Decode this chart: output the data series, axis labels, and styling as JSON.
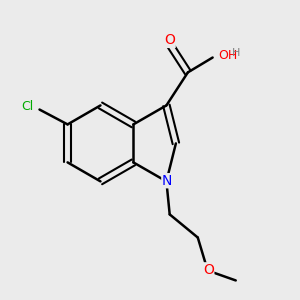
{
  "background_color": "#ebebeb",
  "bond_color": "#000000",
  "double_bond_color": "#000000",
  "atom_colors": {
    "O": "#ff0000",
    "N": "#0000ff",
    "Cl": "#00aa00",
    "H": "#808080",
    "C": "#000000"
  },
  "figsize": [
    3.0,
    3.0
  ],
  "dpi": 100
}
